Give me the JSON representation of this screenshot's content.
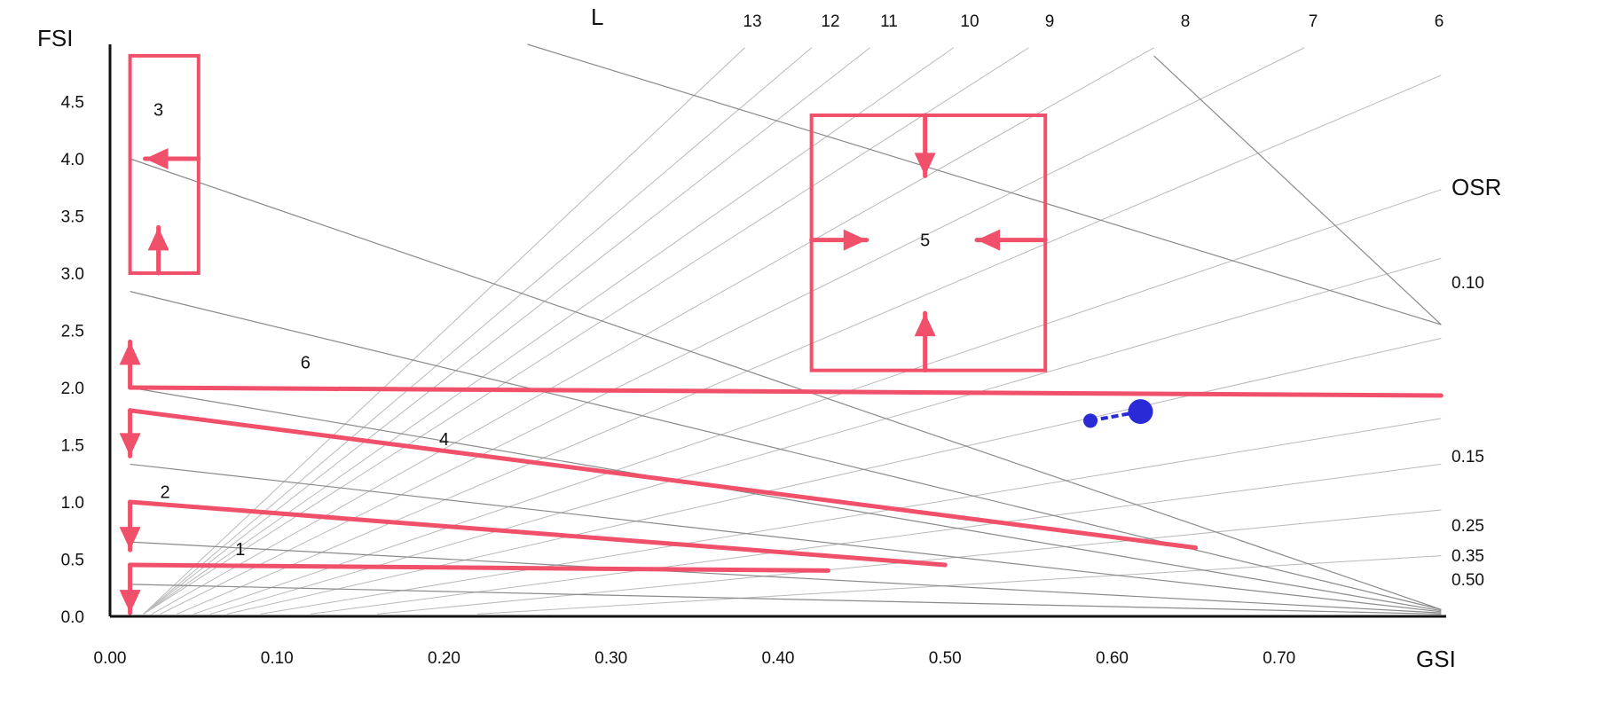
{
  "chart_data": {
    "type": "line",
    "title": "",
    "xlabel": "GSI",
    "ylabel": "FSI",
    "xlim": [
      0,
      0.8
    ],
    "ylim": [
      0,
      5
    ],
    "x_ticks": [
      "0.00",
      "0.10",
      "0.20",
      "0.30",
      "0.40",
      "0.50",
      "0.60",
      "0.70"
    ],
    "y_ticks": [
      "0.0",
      "0.5",
      "1.0",
      "1.5",
      "2.0",
      "2.5",
      "3.0",
      "3.5",
      "4.0",
      "4.5"
    ],
    "l_label": "L",
    "l_values": [
      "13",
      "12",
      "11",
      "10",
      "9",
      "8",
      "7",
      "6"
    ],
    "osr_label": "OSR",
    "osr_values": [
      "0.10",
      "0.15",
      "0.25",
      "0.35",
      "0.50"
    ],
    "osr_lines": [
      {
        "x": [
          0.012,
          0.797
        ],
        "y": [
          4.0,
          0.06
        ]
      },
      {
        "x": [
          0.012,
          0.797
        ],
        "y": [
          2.84,
          0.06
        ]
      },
      {
        "x": [
          0.012,
          0.797
        ],
        "y": [
          2.0,
          0.05
        ]
      },
      {
        "x": [
          0.012,
          0.797
        ],
        "y": [
          1.33,
          0.04
        ]
      },
      {
        "x": [
          0.012,
          0.797
        ],
        "y": [
          0.65,
          0.03
        ]
      },
      {
        "x": [
          0.012,
          0.797
        ],
        "y": [
          0.28,
          0.02
        ]
      },
      {
        "x": [
          0.25,
          0.797
        ],
        "y": [
          5.0,
          2.55
        ]
      },
      {
        "x": [
          0.625,
          0.797
        ],
        "y": [
          4.9,
          2.55
        ]
      }
    ],
    "l_lines": [
      {
        "x": [
          0.02,
          0.38
        ],
        "y": [
          0.02,
          4.97
        ]
      },
      {
        "x": [
          0.02,
          0.42
        ],
        "y": [
          0.02,
          4.97
        ]
      },
      {
        "x": [
          0.02,
          0.455
        ],
        "y": [
          0.02,
          4.97
        ]
      },
      {
        "x": [
          0.02,
          0.505
        ],
        "y": [
          0.02,
          4.97
        ]
      },
      {
        "x": [
          0.02,
          0.55
        ],
        "y": [
          0.02,
          4.97
        ]
      },
      {
        "x": [
          0.025,
          0.625
        ],
        "y": [
          0.02,
          4.97
        ]
      },
      {
        "x": [
          0.03,
          0.715
        ],
        "y": [
          0.02,
          4.97
        ]
      },
      {
        "x": [
          0.04,
          0.797
        ],
        "y": [
          0.02,
          4.73
        ]
      },
      {
        "x": [
          0.05,
          0.797
        ],
        "y": [
          0.02,
          3.73
        ]
      },
      {
        "x": [
          0.06,
          0.797
        ],
        "y": [
          0.02,
          3.13
        ]
      },
      {
        "x": [
          0.07,
          0.797
        ],
        "y": [
          0.02,
          2.43
        ]
      },
      {
        "x": [
          0.09,
          0.797
        ],
        "y": [
          0.02,
          1.73
        ]
      },
      {
        "x": [
          0.12,
          0.797
        ],
        "y": [
          0.02,
          1.33
        ]
      },
      {
        "x": [
          0.16,
          0.797
        ],
        "y": [
          0.02,
          0.93
        ]
      },
      {
        "x": [
          0.22,
          0.797
        ],
        "y": [
          0.02,
          0.53
        ]
      }
    ],
    "strategies": [
      {
        "label": "1",
        "x": [
          0.012,
          0.43
        ],
        "y": [
          0.45,
          0.4
        ]
      },
      {
        "label": "2",
        "x": [
          0.012,
          0.5
        ],
        "y": [
          1.0,
          0.45
        ]
      },
      {
        "label": "4",
        "x": [
          0.012,
          0.65
        ],
        "y": [
          1.8,
          0.6
        ]
      },
      {
        "label": "6",
        "x": [
          0.012,
          0.797
        ],
        "y": [
          2.0,
          1.93
        ]
      }
    ],
    "region_boxes": [
      {
        "label": "3",
        "x": [
          0.012,
          0.053
        ],
        "y": [
          3.0,
          4.9
        ]
      },
      {
        "label": "5",
        "x": [
          0.42,
          0.56
        ],
        "y": [
          2.15,
          4.38
        ]
      }
    ],
    "point_labels": [
      {
        "label": "6",
        "x": 0.117,
        "y": 2.22
      },
      {
        "label": "4",
        "x": 0.2,
        "y": 1.55
      },
      {
        "label": "2",
        "x": 0.033,
        "y": 1.09
      },
      {
        "label": "1",
        "x": 0.078,
        "y": 0.59
      },
      {
        "label": "3",
        "x": 0.029,
        "y": 4.43
      },
      {
        "label": "5",
        "x": 0.488,
        "y": 3.29
      }
    ],
    "blue_marker": {
      "x": [
        0.587,
        0.617
      ],
      "y": [
        1.71,
        1.79
      ],
      "color": "#2a2ad6"
    },
    "colors": {
      "strategy": "#f0506a",
      "marker": "#2a2ad6",
      "grid": "#b9b9b9",
      "osr": "#8a8a8a"
    },
    "grid": false,
    "legend": "none"
  }
}
